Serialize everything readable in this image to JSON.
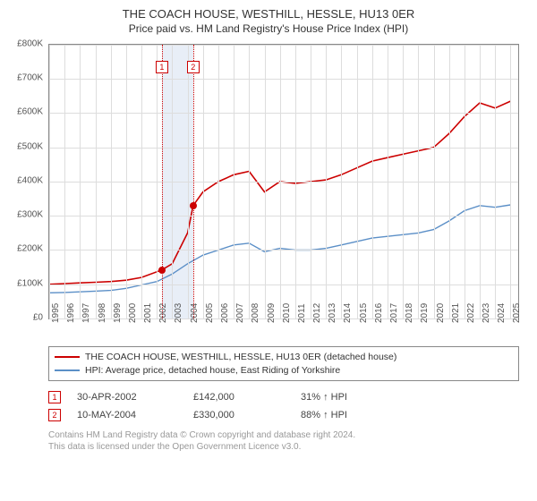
{
  "header": {
    "title": "THE COACH HOUSE, WESTHILL, HESSLE, HU13 0ER",
    "subtitle": "Price paid vs. HM Land Registry's House Price Index (HPI)"
  },
  "chart": {
    "type": "line",
    "background_color": "#ffffff",
    "grid_color": "#dddddd",
    "axis_color": "#888888",
    "label_fontsize": 10,
    "x": {
      "min": 1995,
      "max": 2025.5,
      "ticks": [
        1995,
        1996,
        1997,
        1998,
        1999,
        2000,
        2001,
        2002,
        2003,
        2004,
        2005,
        2006,
        2007,
        2008,
        2009,
        2010,
        2011,
        2012,
        2013,
        2014,
        2015,
        2016,
        2017,
        2018,
        2019,
        2020,
        2021,
        2022,
        2023,
        2024,
        2025
      ]
    },
    "y": {
      "min": 0,
      "max": 800000,
      "ticks": [
        0,
        100000,
        200000,
        300000,
        400000,
        500000,
        600000,
        700000,
        800000
      ],
      "tick_labels": [
        "£0",
        "£100K",
        "£200K",
        "£300K",
        "£400K",
        "£500K",
        "£600K",
        "£700K",
        "£800K"
      ]
    },
    "series": [
      {
        "name": "property",
        "color": "#cc0000",
        "line_width": 1.6,
        "points": [
          [
            1995,
            100000
          ],
          [
            1996,
            102000
          ],
          [
            1997,
            104000
          ],
          [
            1998,
            106000
          ],
          [
            1999,
            108000
          ],
          [
            2000,
            112000
          ],
          [
            2001,
            120000
          ],
          [
            2002.33,
            142000
          ],
          [
            2003,
            160000
          ],
          [
            2004,
            250000
          ],
          [
            2004.36,
            330000
          ],
          [
            2005,
            370000
          ],
          [
            2006,
            400000
          ],
          [
            2007,
            420000
          ],
          [
            2008,
            430000
          ],
          [
            2009,
            370000
          ],
          [
            2010,
            400000
          ],
          [
            2011,
            395000
          ],
          [
            2012,
            400000
          ],
          [
            2013,
            405000
          ],
          [
            2014,
            420000
          ],
          [
            2015,
            440000
          ],
          [
            2016,
            460000
          ],
          [
            2017,
            470000
          ],
          [
            2018,
            480000
          ],
          [
            2019,
            490000
          ],
          [
            2020,
            500000
          ],
          [
            2021,
            540000
          ],
          [
            2022,
            590000
          ],
          [
            2023,
            630000
          ],
          [
            2024,
            615000
          ],
          [
            2025,
            635000
          ]
        ]
      },
      {
        "name": "hpi",
        "color": "#5b8fc7",
        "line_width": 1.4,
        "points": [
          [
            1995,
            75000
          ],
          [
            1996,
            76000
          ],
          [
            1997,
            78000
          ],
          [
            1998,
            80000
          ],
          [
            1999,
            82000
          ],
          [
            2000,
            88000
          ],
          [
            2001,
            98000
          ],
          [
            2002,
            108000
          ],
          [
            2003,
            130000
          ],
          [
            2004,
            160000
          ],
          [
            2005,
            185000
          ],
          [
            2006,
            200000
          ],
          [
            2007,
            215000
          ],
          [
            2008,
            220000
          ],
          [
            2009,
            195000
          ],
          [
            2010,
            205000
          ],
          [
            2011,
            200000
          ],
          [
            2012,
            200000
          ],
          [
            2013,
            205000
          ],
          [
            2014,
            215000
          ],
          [
            2015,
            225000
          ],
          [
            2016,
            235000
          ],
          [
            2017,
            240000
          ],
          [
            2018,
            245000
          ],
          [
            2019,
            250000
          ],
          [
            2020,
            260000
          ],
          [
            2021,
            285000
          ],
          [
            2022,
            315000
          ],
          [
            2023,
            330000
          ],
          [
            2024,
            325000
          ],
          [
            2025,
            332000
          ]
        ]
      }
    ],
    "sale_markers": [
      {
        "id": "1",
        "x": 2002.33,
        "y": 142000
      },
      {
        "id": "2",
        "x": 2004.36,
        "y": 330000
      }
    ],
    "marker_band": {
      "from": 2002.33,
      "to": 2004.36,
      "fill": "#e8eef7"
    },
    "marker_badge_border": "#cc0000"
  },
  "legend": {
    "items": [
      {
        "color": "#cc0000",
        "label": "THE COACH HOUSE, WESTHILL, HESSLE, HU13 0ER (detached house)"
      },
      {
        "color": "#5b8fc7",
        "label": "HPI: Average price, detached house, East Riding of Yorkshire"
      }
    ]
  },
  "transactions": [
    {
      "id": "1",
      "date": "30-APR-2002",
      "price": "£142,000",
      "delta": "31% ↑ HPI"
    },
    {
      "id": "2",
      "date": "10-MAY-2004",
      "price": "£330,000",
      "delta": "88% ↑ HPI"
    }
  ],
  "footer": {
    "line1": "Contains HM Land Registry data © Crown copyright and database right 2024.",
    "line2": "This data is licensed under the Open Government Licence v3.0."
  }
}
